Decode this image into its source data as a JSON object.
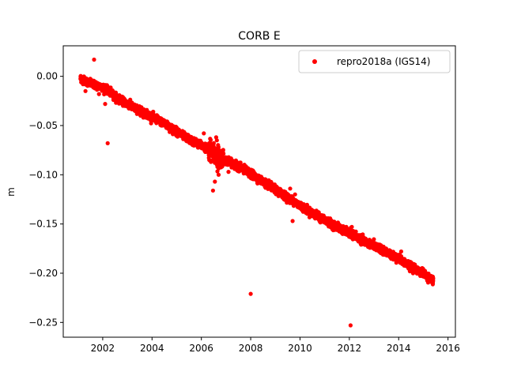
{
  "chart_data": {
    "type": "scatter",
    "title": "CORB E",
    "xlabel": "",
    "ylabel": "m",
    "xlim": [
      2000.4,
      2016.3
    ],
    "ylim": [
      -0.265,
      0.031
    ],
    "xticks": [
      2002,
      2004,
      2006,
      2008,
      2010,
      2012,
      2014,
      2016
    ],
    "xtick_labels": [
      "2002",
      "2004",
      "2006",
      "2008",
      "2010",
      "2012",
      "2014",
      "2016"
    ],
    "yticks": [
      0.0,
      -0.05,
      -0.1,
      -0.15,
      -0.2,
      -0.25
    ],
    "ytick_labels": [
      "0.00",
      "−0.05",
      "−0.10",
      "−0.15",
      "−0.20",
      "−0.25"
    ],
    "grid": false,
    "legend_position": "upper-right",
    "series": [
      {
        "name": "repro2018a (IGS14)",
        "color": "#ff0000",
        "marker": "circle",
        "trend": {
          "x": [
            2001.1,
            2001.4,
            2001.7,
            2002.0,
            2002.3,
            2002.6,
            2003.0,
            2003.5,
            2004.0,
            2004.5,
            2005.0,
            2005.5,
            2006.0,
            2006.3,
            2006.6,
            2006.9,
            2007.3,
            2007.6,
            2008.0,
            2008.5,
            2009.0,
            2009.5,
            2010.0,
            2010.5,
            2011.0,
            2011.5,
            2012.0,
            2012.5,
            2013.0,
            2013.5,
            2014.0,
            2014.3,
            2014.6,
            2015.0,
            2015.4
          ],
          "y": [
            -0.002,
            -0.006,
            -0.009,
            -0.011,
            -0.016,
            -0.022,
            -0.028,
            -0.035,
            -0.041,
            -0.048,
            -0.056,
            -0.064,
            -0.07,
            -0.074,
            -0.079,
            -0.085,
            -0.089,
            -0.093,
            -0.099,
            -0.107,
            -0.115,
            -0.123,
            -0.131,
            -0.139,
            -0.146,
            -0.153,
            -0.159,
            -0.166,
            -0.172,
            -0.179,
            -0.185,
            -0.19,
            -0.195,
            -0.2,
            -0.208
          ]
        },
        "outliers": {
          "x": [
            2001.65,
            2002.1,
            2002.2,
            2001.3,
            2001.85,
            2006.1,
            2006.6,
            2006.63,
            2006.7,
            2006.47,
            2006.55,
            2006.65,
            2006.75,
            2007.1,
            2008.0,
            2009.6,
            2009.7,
            2009.65,
            2009.8,
            2012.05,
            2012.1,
            2014.1,
            2013.8
          ],
          "y": [
            0.017,
            -0.028,
            -0.068,
            -0.015,
            -0.018,
            -0.058,
            -0.062,
            -0.065,
            -0.1,
            -0.116,
            -0.107,
            -0.092,
            -0.088,
            -0.097,
            -0.221,
            -0.114,
            -0.147,
            -0.128,
            -0.12,
            -0.253,
            -0.153,
            -0.178,
            -0.183
          ]
        }
      }
    ]
  }
}
